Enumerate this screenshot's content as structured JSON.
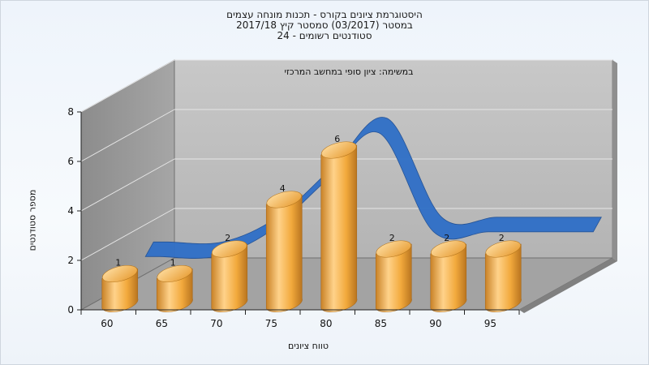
{
  "chart_data": {
    "type": "bar",
    "title": "היסטוגרמת ציונים בקורס - תכנות מונחה עצמים",
    "subtitle": "במסטר  (03/2017)  סמסטר קיץ 2017/18",
    "subtitle2": "סטודנטים רשומים - 24",
    "annotation": "במשימה: ציון סופי במחשב המרכזי",
    "xlabel": "טווח ציונים",
    "ylabel": "מספר סטודנטים",
    "categories": [
      "60",
      "65",
      "70",
      "75",
      "80",
      "85",
      "90",
      "95"
    ],
    "values": [
      1,
      1,
      2,
      4,
      6,
      2,
      2,
      2
    ],
    "ylim": [
      0,
      8
    ],
    "yticks": [
      "0",
      "2",
      "4",
      "6",
      "8"
    ],
    "grid": true,
    "colors": {
      "bar": "#f2a93c",
      "bar_light": "#ffd28a",
      "bar_dark": "#c98227",
      "ribbon": "#2f6fc7",
      "wall": "#9a9a9a",
      "back_wall": "#bdbdbd",
      "floor": "#a0a0a0"
    }
  }
}
